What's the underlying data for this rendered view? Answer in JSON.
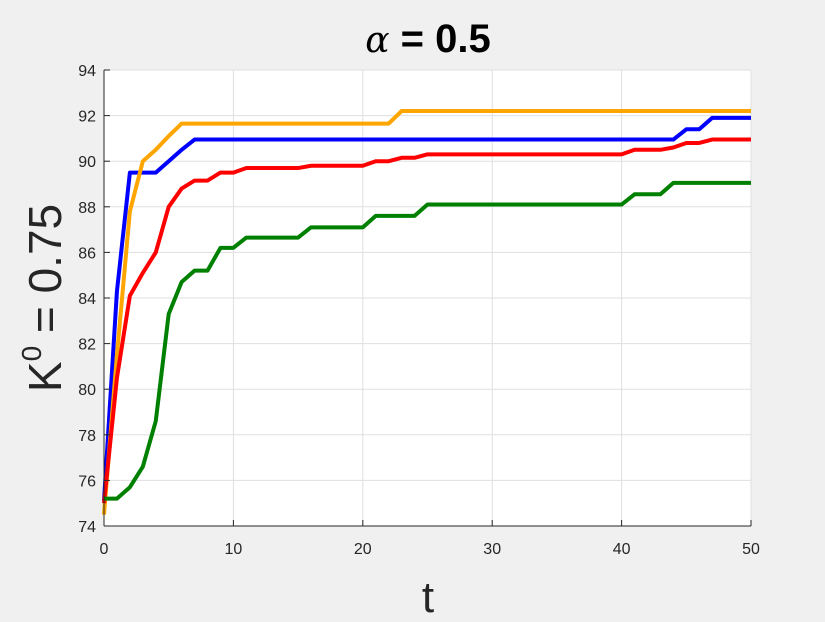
{
  "chart_data": {
    "type": "line",
    "title_symbol": "α",
    "title_rest": " = 0.5",
    "xlabel": "t",
    "ylabel_base": "K",
    "ylabel_sup": "0",
    "ylabel_rest": " = 0.75",
    "xlim": [
      0,
      50
    ],
    "ylim": [
      74,
      94
    ],
    "xticks": [
      0,
      10,
      20,
      30,
      40,
      50
    ],
    "yticks": [
      74,
      76,
      78,
      80,
      82,
      84,
      86,
      88,
      90,
      92,
      94
    ],
    "grid": true,
    "legend": "none",
    "series": [
      {
        "color": "#0000ff",
        "x": [
          0,
          1,
          2,
          3,
          4,
          5,
          6,
          7,
          8,
          20,
          40,
          44,
          45,
          46,
          47,
          50
        ],
        "y": [
          75.1,
          84.3,
          89.5,
          89.5,
          89.5,
          90.0,
          90.5,
          90.95,
          90.95,
          90.95,
          90.95,
          90.95,
          91.4,
          91.4,
          91.9,
          91.9
        ]
      },
      {
        "color": "#ffa500",
        "x": [
          0,
          1,
          2,
          3,
          4,
          5,
          6,
          7,
          22,
          23,
          50
        ],
        "y": [
          74.5,
          81.5,
          87.8,
          90.0,
          90.5,
          91.1,
          91.65,
          91.65,
          91.65,
          92.2,
          92.2
        ]
      },
      {
        "color": "#ff0000",
        "x": [
          0,
          1,
          2,
          3,
          4,
          5,
          6,
          7,
          8,
          9,
          10,
          11,
          12,
          15,
          16,
          20,
          21,
          22,
          23,
          24,
          25,
          26,
          40,
          41,
          43,
          44,
          45,
          46,
          47,
          50
        ],
        "y": [
          75.0,
          80.5,
          84.1,
          85.1,
          86.0,
          88.0,
          88.8,
          89.15,
          89.15,
          89.5,
          89.5,
          89.7,
          89.7,
          89.7,
          89.8,
          89.8,
          90.0,
          90.0,
          90.15,
          90.15,
          90.3,
          90.3,
          90.3,
          90.5,
          90.5,
          90.6,
          90.8,
          90.8,
          90.95,
          90.95
        ]
      },
      {
        "color": "#008000",
        "x": [
          0,
          1,
          2,
          3,
          4,
          5,
          6,
          7,
          8,
          9,
          10,
          11,
          12,
          15,
          16,
          17,
          20,
          21,
          22,
          23,
          24,
          25,
          26,
          40,
          41,
          42,
          43,
          44,
          45,
          50
        ],
        "y": [
          75.2,
          75.2,
          75.7,
          76.6,
          78.6,
          83.3,
          84.7,
          85.2,
          85.2,
          86.2,
          86.2,
          86.65,
          86.65,
          86.65,
          87.1,
          87.1,
          87.1,
          87.6,
          87.6,
          87.6,
          87.6,
          88.1,
          88.1,
          88.1,
          88.55,
          88.55,
          88.55,
          89.05,
          89.05,
          89.05
        ]
      }
    ]
  }
}
